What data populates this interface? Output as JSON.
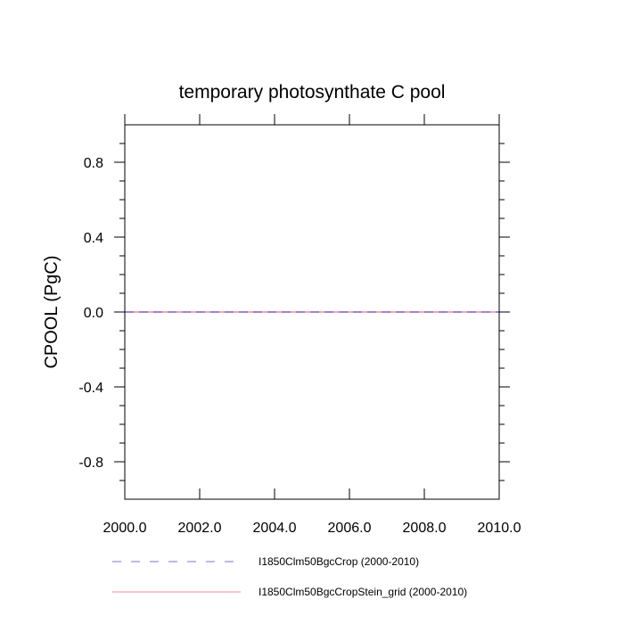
{
  "chart_data": {
    "type": "line",
    "title": "temporary photosynthate C pool",
    "xlabel": "",
    "ylabel": "CPOOL  (PgC)",
    "xlim": [
      2000.0,
      2010.0
    ],
    "ylim": [
      -1.0,
      1.0
    ],
    "x_ticks": [
      2000.0,
      2002.0,
      2004.0,
      2006.0,
      2008.0,
      2010.0
    ],
    "x_tick_labels": [
      "2000.0",
      "2002.0",
      "2004.0",
      "2006.0",
      "2008.0",
      "2010.0"
    ],
    "y_ticks": [
      -0.8,
      -0.4,
      0.0,
      0.4,
      0.8
    ],
    "y_tick_labels": [
      "-0.8",
      "-0.4",
      "0.0",
      "0.4",
      "0.8"
    ],
    "grid": false,
    "legend_position": "bottom",
    "series": [
      {
        "name": "I1850Clm50BgcCrop (2000-2010)",
        "color": "#7f70d8",
        "style": "dashed",
        "x": [
          2000.0,
          2010.0
        ],
        "values": [
          0.0,
          0.0
        ]
      },
      {
        "name": "I1850Clm50BgcCropStein_grid (2000-2010)",
        "color": "#f08a9c",
        "style": "solid",
        "x": [
          2000.0,
          2010.0
        ],
        "values": [
          0.0,
          0.0
        ]
      }
    ]
  }
}
